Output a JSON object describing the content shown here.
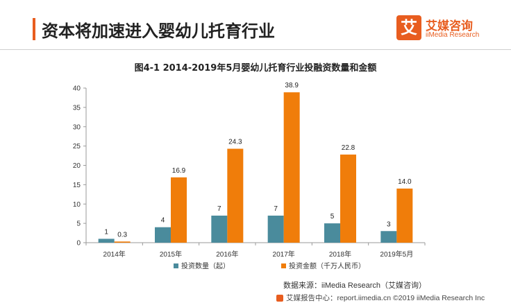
{
  "header": {
    "title": "资本将加速进入婴幼儿托育行业",
    "accent_color": "#e85d1f"
  },
  "logo": {
    "mark": "艾",
    "name_cn": "艾媒咨询",
    "name_en": "iiMedia Research",
    "icon": "iimedia-logo-icon"
  },
  "chart_data": {
    "type": "bar",
    "title": "图4-1 2014-2019年5月婴幼儿托育行业投融资数量和金额",
    "categories": [
      "2014年",
      "2015年",
      "2016年",
      "2017年",
      "2018年",
      "2019年5月"
    ],
    "series": [
      {
        "name": "投资数量（起）",
        "values": [
          1,
          4,
          7,
          7,
          5,
          3
        ],
        "color": "#4a8b9c",
        "labels": [
          "1",
          "4",
          "7",
          "7",
          "5",
          "3"
        ]
      },
      {
        "name": "投资金额（千万人民币）",
        "values": [
          0.3,
          16.9,
          24.3,
          38.9,
          22.8,
          14.0
        ],
        "color": "#f07d0a",
        "labels": [
          "0.3",
          "16.9",
          "24.3",
          "38.9",
          "22.8",
          "14.0"
        ]
      }
    ],
    "ylim": [
      0,
      40
    ],
    "yticks": [
      "0",
      "5",
      "10",
      "15",
      "20",
      "25",
      "30",
      "35",
      "40"
    ],
    "grid": false,
    "legend_position": "bottom"
  },
  "source": "数据来源：iiMedia Research（艾媒咨询）",
  "footer": "艾媒报告中心：report.iimedia.cn  ©2019  iiMedia Research Inc"
}
